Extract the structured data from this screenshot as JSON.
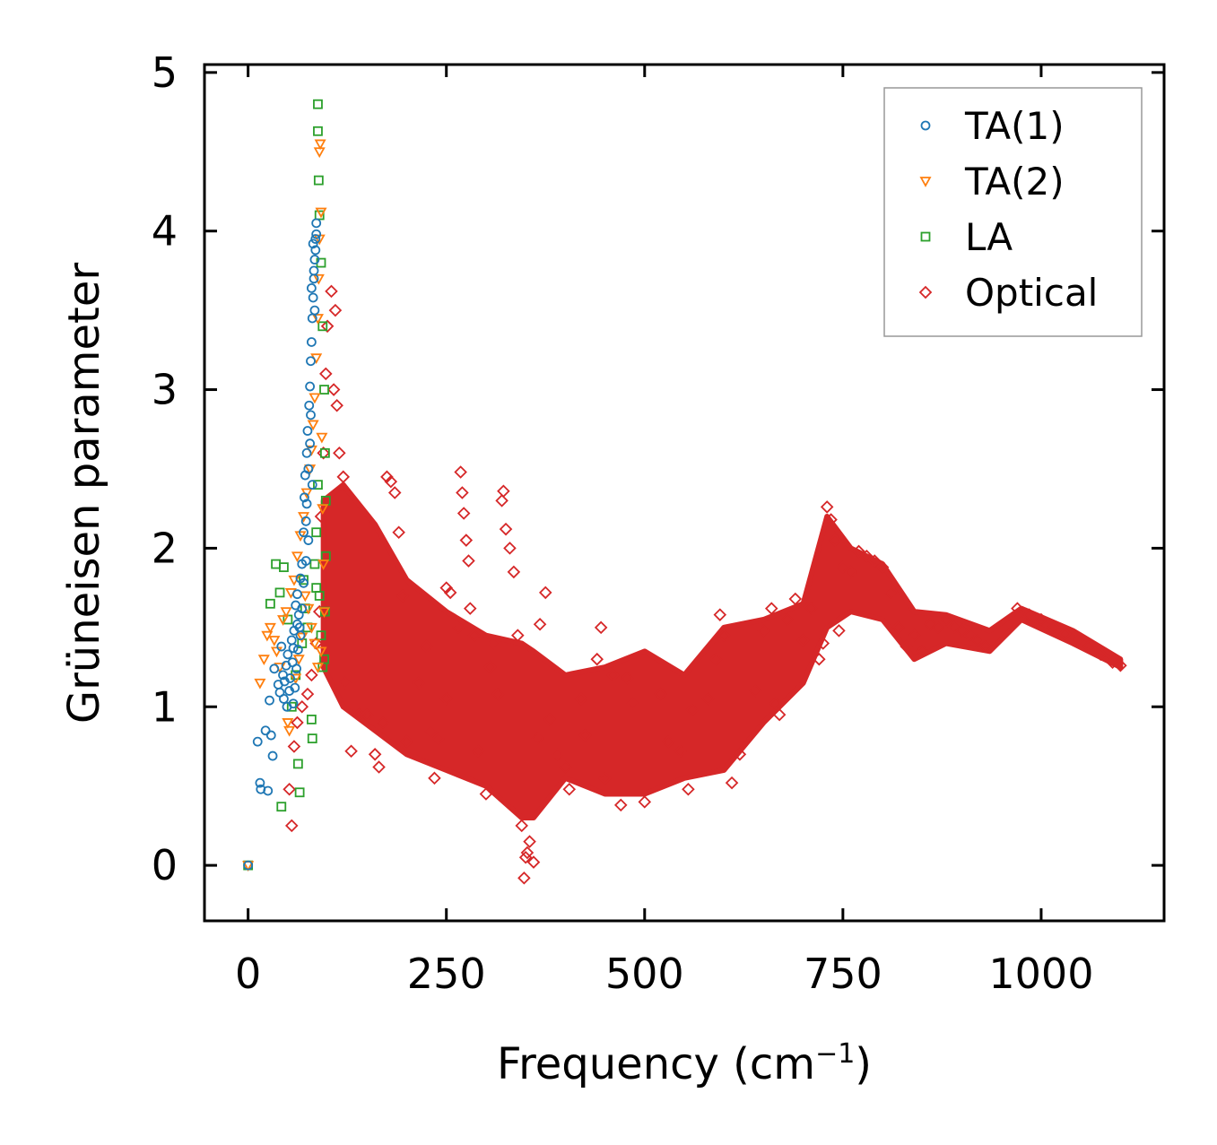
{
  "chart_data": {
    "type": "scatter",
    "title": "",
    "xlabel": "Frequency (cm",
    "xlabel_sup": "−1",
    "xlabel_close": ")",
    "ylabel": "Grüneisen parameter",
    "xlim": [
      -55,
      1155
    ],
    "ylim": [
      -0.35,
      5.05
    ],
    "xticks": [
      0,
      250,
      500,
      750,
      1000
    ],
    "xtick_labels": [
      "0",
      "250",
      "500",
      "750",
      "1000"
    ],
    "yticks": [
      0,
      1,
      2,
      3,
      4,
      5
    ],
    "ytick_labels": [
      "0",
      "1",
      "2",
      "3",
      "4",
      "5"
    ],
    "legend_position": "top-right",
    "series": [
      {
        "name": "TA(1)",
        "marker": "circle",
        "color": "#1f77b4",
        "points": [
          [
            0,
            0
          ],
          [
            12,
            0.78
          ],
          [
            15,
            0.52
          ],
          [
            16,
            0.48
          ],
          [
            22,
            0.85
          ],
          [
            25,
            0.47
          ],
          [
            27,
            1.04
          ],
          [
            29,
            0.82
          ],
          [
            31,
            0.69
          ],
          [
            33,
            1.24
          ],
          [
            38,
            1.14
          ],
          [
            40,
            1.09
          ],
          [
            42,
            1.38
          ],
          [
            44,
            1.2
          ],
          [
            46,
            1.16
          ],
          [
            48,
            1.26
          ],
          [
            50,
            1.33
          ],
          [
            52,
            1.1
          ],
          [
            55,
            1.42
          ],
          [
            57,
            1.37
          ],
          [
            58,
            1.48
          ],
          [
            60,
            1.64
          ],
          [
            62,
            1.71
          ],
          [
            64,
            1.58
          ],
          [
            66,
            1.81
          ],
          [
            68,
            1.9
          ],
          [
            70,
            2.1
          ],
          [
            71,
            2.32
          ],
          [
            72,
            2.46
          ],
          [
            73,
            2.17
          ],
          [
            74,
            2.6
          ],
          [
            75,
            2.74
          ],
          [
            76,
            2.5
          ],
          [
            77,
            2.9
          ],
          [
            78,
            3.02
          ],
          [
            79,
            3.18
          ],
          [
            80,
            3.3
          ],
          [
            81,
            3.45
          ],
          [
            82,
            3.58
          ],
          [
            83,
            3.7
          ],
          [
            84,
            3.82
          ],
          [
            85,
            3.95
          ],
          [
            86,
            4.05
          ],
          [
            80,
            3.64
          ],
          [
            82,
            3.92
          ],
          [
            84,
            3.5
          ],
          [
            79,
            2.84
          ],
          [
            81,
            2.4
          ],
          [
            76,
            2.05
          ],
          [
            73,
            1.92
          ],
          [
            70,
            1.78
          ],
          [
            68,
            1.62
          ],
          [
            65,
            1.5
          ],
          [
            63,
            1.36
          ],
          [
            61,
            1.24
          ],
          [
            59,
            1.12
          ],
          [
            57,
            1.02
          ],
          [
            83,
            3.75
          ],
          [
            85,
            3.88
          ],
          [
            78,
            2.66
          ],
          [
            86,
            3.98
          ],
          [
            74,
            2.28
          ],
          [
            66,
            1.45
          ],
          [
            62,
            1.52
          ],
          [
            56,
            1.28
          ],
          [
            53,
            1.18
          ],
          [
            49,
            1.0
          ],
          [
            45,
            1.05
          ]
        ]
      },
      {
        "name": "TA(2)",
        "marker": "triangle",
        "color": "#ff7f0e",
        "points": [
          [
            0,
            0
          ],
          [
            15,
            1.15
          ],
          [
            20,
            1.3
          ],
          [
            24,
            1.45
          ],
          [
            28,
            1.5
          ],
          [
            33,
            1.42
          ],
          [
            36,
            1.35
          ],
          [
            40,
            1.25
          ],
          [
            44,
            1.55
          ],
          [
            48,
            1.6
          ],
          [
            50,
            0.9
          ],
          [
            52,
            0.85
          ],
          [
            54,
            1.72
          ],
          [
            58,
            1.8
          ],
          [
            62,
            1.95
          ],
          [
            66,
            2.08
          ],
          [
            70,
            2.2
          ],
          [
            74,
            2.35
          ],
          [
            78,
            2.5
          ],
          [
            80,
            2.62
          ],
          [
            82,
            2.78
          ],
          [
            84,
            2.95
          ],
          [
            86,
            3.2
          ],
          [
            88,
            3.45
          ],
          [
            89,
            3.7
          ],
          [
            90,
            3.95
          ],
          [
            90,
            4.5
          ],
          [
            91,
            4.55
          ],
          [
            92,
            4.12
          ],
          [
            93,
            2.7
          ],
          [
            94,
            2.25
          ],
          [
            95,
            1.9
          ],
          [
            96,
            1.6
          ],
          [
            92,
            1.35
          ],
          [
            88,
            1.25
          ],
          [
            84,
            1.4
          ],
          [
            80,
            1.5
          ],
          [
            76,
            1.62
          ],
          [
            72,
            1.7
          ],
          [
            68,
            1.44
          ],
          [
            64,
            1.3
          ],
          [
            60,
            1.18
          ]
        ]
      },
      {
        "name": "LA",
        "marker": "square",
        "color": "#2ca02c",
        "points": [
          [
            0,
            0
          ],
          [
            28,
            1.65
          ],
          [
            35,
            1.9
          ],
          [
            40,
            1.72
          ],
          [
            42,
            0.37
          ],
          [
            45,
            1.88
          ],
          [
            50,
            1.55
          ],
          [
            55,
            1.0
          ],
          [
            60,
            1.2
          ],
          [
            63,
            0.64
          ],
          [
            65,
            0.46
          ],
          [
            68,
            1.4
          ],
          [
            70,
            1.8
          ],
          [
            72,
            1.62
          ],
          [
            75,
            1.5
          ],
          [
            80,
            0.92
          ],
          [
            81,
            0.8
          ],
          [
            84,
            1.9
          ],
          [
            86,
            2.1
          ],
          [
            88,
            2.4
          ],
          [
            88,
            4.8
          ],
          [
            88,
            4.63
          ],
          [
            89,
            4.32
          ],
          [
            90,
            4.1
          ],
          [
            92,
            3.8
          ],
          [
            94,
            3.4
          ],
          [
            96,
            3.0
          ],
          [
            97,
            2.6
          ],
          [
            98,
            2.3
          ],
          [
            98,
            1.95
          ],
          [
            97,
            1.6
          ],
          [
            96,
            1.3
          ],
          [
            94,
            1.25
          ],
          [
            92,
            1.45
          ],
          [
            90,
            1.7
          ],
          [
            86,
            1.75
          ]
        ]
      },
      {
        "name": "Optical",
        "marker": "diamond",
        "color": "#d62728",
        "points": [
          [
            55,
            0.25
          ],
          [
            52,
            0.48
          ],
          [
            58,
            0.75
          ],
          [
            62,
            0.9
          ],
          [
            68,
            1.0
          ],
          [
            75,
            1.08
          ],
          [
            80,
            1.2
          ],
          [
            86,
            1.4
          ],
          [
            90,
            1.6
          ],
          [
            92,
            2.2
          ],
          [
            95,
            2.6
          ],
          [
            98,
            3.1
          ],
          [
            100,
            3.4
          ],
          [
            105,
            3.62
          ],
          [
            110,
            3.5
          ],
          [
            108,
            3.0
          ],
          [
            112,
            2.9
          ],
          [
            115,
            2.6
          ],
          [
            120,
            2.45
          ],
          [
            122,
            1.15
          ],
          [
            130,
            0.72
          ],
          [
            140,
            0.95
          ],
          [
            150,
            0.95
          ],
          [
            160,
            0.7
          ],
          [
            165,
            0.62
          ],
          [
            170,
            0.9
          ],
          [
            175,
            2.45
          ],
          [
            180,
            2.42
          ],
          [
            185,
            2.35
          ],
          [
            190,
            2.1
          ],
          [
            195,
            1.7
          ],
          [
            200,
            0.78
          ],
          [
            215,
            1.15
          ],
          [
            225,
            1.38
          ],
          [
            230,
            0.85
          ],
          [
            235,
            0.55
          ],
          [
            240,
            0.8
          ],
          [
            250,
            1.05
          ],
          [
            250,
            1.75
          ],
          [
            255,
            1.72
          ],
          [
            265,
            1.5
          ],
          [
            268,
            2.48
          ],
          [
            270,
            2.35
          ],
          [
            272,
            2.22
          ],
          [
            275,
            2.05
          ],
          [
            278,
            1.92
          ],
          [
            280,
            1.62
          ],
          [
            285,
            1.45
          ],
          [
            290,
            0.72
          ],
          [
            300,
            0.45
          ],
          [
            305,
            1.25
          ],
          [
            310,
            1.4
          ],
          [
            315,
            1.08
          ],
          [
            320,
            2.3
          ],
          [
            322,
            2.36
          ],
          [
            325,
            2.12
          ],
          [
            330,
            2.0
          ],
          [
            335,
            1.85
          ],
          [
            340,
            1.45
          ],
          [
            345,
            0.25
          ],
          [
            348,
            -0.08
          ],
          [
            350,
            0.05
          ],
          [
            352,
            0.08
          ],
          [
            355,
            0.15
          ],
          [
            360,
            0.02
          ],
          [
            365,
            0.8
          ],
          [
            368,
            1.52
          ],
          [
            375,
            1.72
          ],
          [
            380,
            0.92
          ],
          [
            390,
            0.7
          ],
          [
            400,
            0.62
          ],
          [
            405,
            0.48
          ],
          [
            420,
            1.05
          ],
          [
            425,
            0.82
          ],
          [
            440,
            1.3
          ],
          [
            445,
            1.5
          ],
          [
            450,
            0.55
          ],
          [
            460,
            1.2
          ],
          [
            470,
            0.38
          ],
          [
            478,
            1.18
          ],
          [
            485,
            1.02
          ],
          [
            500,
            0.4
          ],
          [
            520,
            1.08
          ],
          [
            530,
            0.78
          ],
          [
            545,
            0.72
          ],
          [
            555,
            0.48
          ],
          [
            560,
            0.98
          ],
          [
            580,
            1.05
          ],
          [
            590,
            1.3
          ],
          [
            595,
            1.58
          ],
          [
            600,
            1.45
          ],
          [
            610,
            0.52
          ],
          [
            620,
            0.7
          ],
          [
            640,
            1.1
          ],
          [
            650,
            1.48
          ],
          [
            660,
            1.62
          ],
          [
            665,
            1.02
          ],
          [
            670,
            0.95
          ],
          [
            680,
            1.55
          ],
          [
            690,
            1.68
          ],
          [
            700,
            1.42
          ],
          [
            710,
            1.62
          ],
          [
            720,
            1.3
          ],
          [
            725,
            1.4
          ],
          [
            730,
            2.26
          ],
          [
            735,
            2.18
          ],
          [
            740,
            2.05
          ],
          [
            745,
            1.48
          ],
          [
            750,
            1.88
          ],
          [
            760,
            1.85
          ],
          [
            770,
            1.98
          ],
          [
            780,
            1.95
          ],
          [
            790,
            1.92
          ],
          [
            800,
            1.88
          ],
          [
            810,
            1.72
          ],
          [
            820,
            1.5
          ],
          [
            830,
            1.38
          ],
          [
            840,
            1.45
          ],
          [
            850,
            1.35
          ],
          [
            860,
            1.52
          ],
          [
            870,
            1.5
          ],
          [
            880,
            1.55
          ],
          [
            890,
            1.5
          ],
          [
            900,
            1.48
          ],
          [
            910,
            1.45
          ],
          [
            920,
            1.42
          ],
          [
            930,
            1.38
          ],
          [
            970,
            1.62
          ],
          [
            985,
            1.58
          ],
          [
            1000,
            1.55
          ],
          [
            1015,
            1.5
          ],
          [
            1030,
            1.46
          ],
          [
            1045,
            1.42
          ],
          [
            1060,
            1.38
          ],
          [
            1075,
            1.33
          ],
          [
            1090,
            1.28
          ],
          [
            1100,
            1.26
          ]
        ]
      }
    ]
  }
}
